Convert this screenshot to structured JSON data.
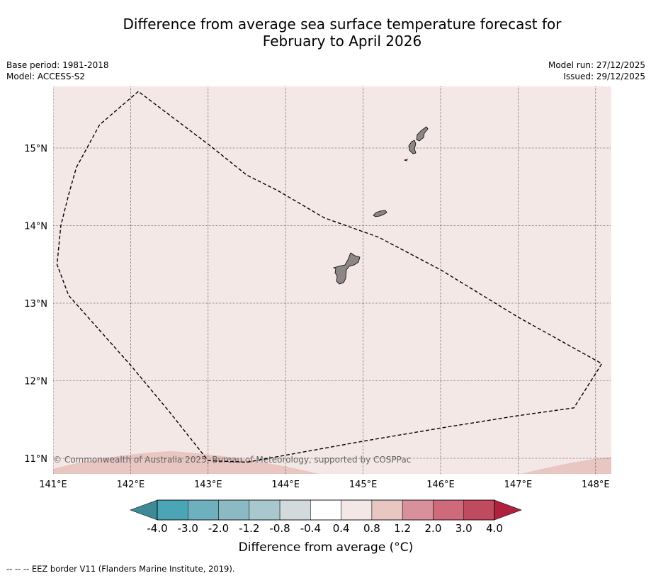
{
  "title": {
    "line1": "Difference from average sea surface temperature forecast for",
    "line2": "February to April 2026"
  },
  "meta": {
    "base_period": "Base period: 1981-2018",
    "model": "Model: ACCESS-S2",
    "model_run": "Model run: 27/12/2025",
    "issued": "Issued: 29/12/2025"
  },
  "map": {
    "lon_ticks": [
      "141°E",
      "142°E",
      "143°E",
      "144°E",
      "145°E",
      "146°E",
      "147°E",
      "148°E"
    ],
    "lat_ticks": [
      "15°N",
      "14°N",
      "13°N",
      "12°N",
      "11°N"
    ],
    "lon_range": [
      141.0,
      148.2
    ],
    "lat_range": [
      10.8,
      15.8
    ],
    "background_anomaly_class": "0.4 to 0.8",
    "southern_edge_anomaly_class": "0.8 to 1.2",
    "copyright": "© Commonwealth of Australia 2025, Bureau of Meteorology, supported by COSPPac",
    "eez_border_lonlat": [
      [
        142.1,
        15.73
      ],
      [
        141.6,
        15.3
      ],
      [
        141.3,
        14.75
      ],
      [
        141.2,
        14.4
      ],
      [
        141.1,
        14.0
      ],
      [
        141.05,
        13.5
      ],
      [
        141.2,
        13.1
      ],
      [
        142.0,
        12.2
      ],
      [
        142.5,
        11.6
      ],
      [
        143.0,
        10.97
      ],
      [
        143.5,
        10.95
      ],
      [
        145.0,
        11.22
      ],
      [
        146.0,
        11.39
      ],
      [
        147.0,
        11.55
      ],
      [
        147.72,
        11.65
      ],
      [
        148.08,
        12.22
      ],
      [
        147.0,
        12.82
      ],
      [
        146.0,
        13.43
      ],
      [
        145.2,
        13.85
      ],
      [
        144.5,
        14.1
      ],
      [
        143.9,
        14.45
      ],
      [
        143.5,
        14.65
      ],
      [
        143.0,
        15.05
      ],
      [
        142.1,
        15.73
      ]
    ]
  },
  "colorbar": {
    "title": "Difference from average (°C)",
    "tick_labels": [
      "-4.0",
      "-3.0",
      "-2.0",
      "-1.2",
      "-0.8",
      "-0.4",
      "0.4",
      "0.8",
      "1.2",
      "2.0",
      "3.0",
      "4.0"
    ],
    "colors": [
      "#4aa5b5",
      "#6eb0be",
      "#8bb9c4",
      "#a8c8cd",
      "#d2dadd",
      "#ffffff",
      "#f4e8e6",
      "#e8c6c2",
      "#d8919a",
      "#ce6a79",
      "#c04a5e"
    ],
    "under_color": "#3e8a96",
    "over_color": "#b0213f"
  },
  "footnote": "--  --  -- EEZ border V11 (Flanders Marine Institute, 2019)."
}
